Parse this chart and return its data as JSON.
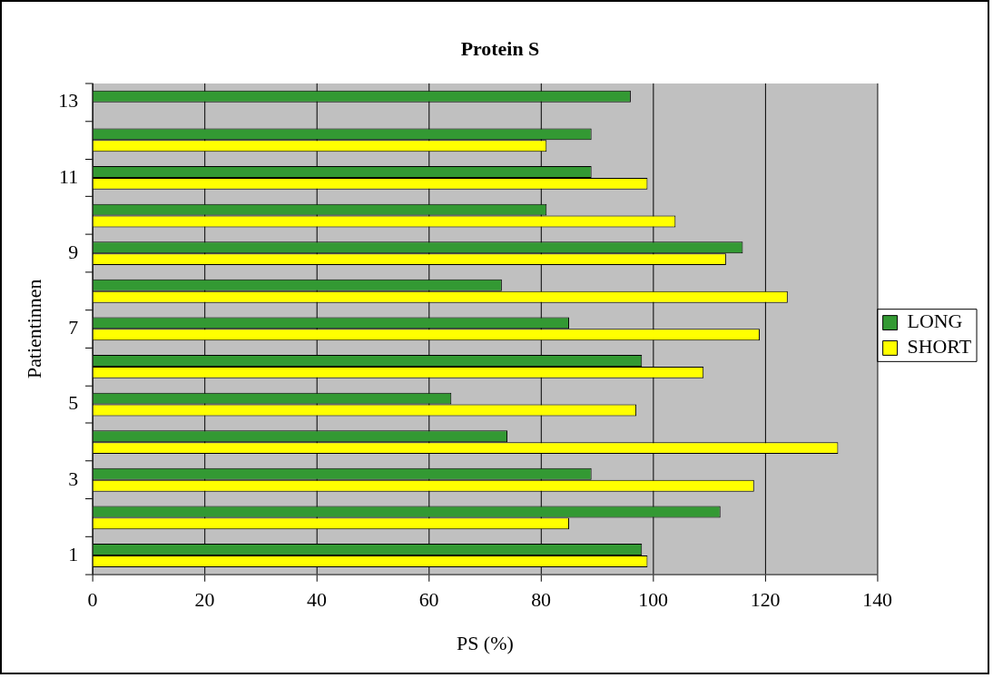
{
  "chart_data": {
    "type": "bar",
    "orientation": "horizontal",
    "title": "Protein S",
    "xlabel": "PS (%)",
    "ylabel": "Patientinnen",
    "categories": [
      "13",
      null,
      "11",
      null,
      "9",
      null,
      "7",
      null,
      "5",
      null,
      "3",
      null,
      "1"
    ],
    "series": [
      {
        "name": "LONG",
        "color": "#339933",
        "values": [
          96,
          89,
          89,
          81,
          116,
          73,
          85,
          98,
          64,
          74,
          89,
          112,
          98
        ]
      },
      {
        "name": "SHORT",
        "color": "#ffff00",
        "values": [
          null,
          81,
          99,
          104,
          113,
          124,
          119,
          109,
          97,
          133,
          118,
          85,
          99
        ]
      }
    ],
    "xlim": [
      0,
      140
    ],
    "xticks": [
      0,
      20,
      40,
      60,
      80,
      100,
      120,
      140
    ],
    "grid": "x",
    "legend": "right"
  }
}
